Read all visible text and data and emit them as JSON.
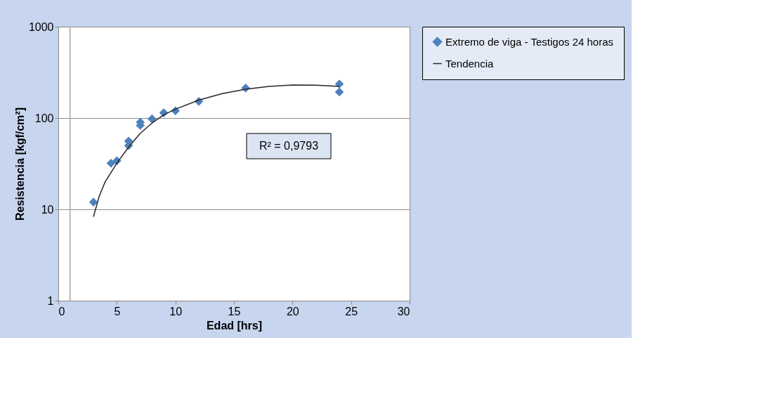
{
  "chart_data": {
    "type": "scatter",
    "xlabel": "Edad [hrs]",
    "ylabel": "Resistencia [kgf/cm²]",
    "annotations": [
      "R² = 0,9793"
    ],
    "xlim": [
      0,
      30
    ],
    "xticks": [
      0,
      5,
      10,
      15,
      20,
      25,
      30
    ],
    "ylim": [
      1,
      1000
    ],
    "yticks": [
      1,
      10,
      100,
      1000
    ],
    "log": "y",
    "grid": "y",
    "legend": "right",
    "ref_lines": [
      {
        "axis": "x",
        "value": 1,
        "label": null,
        "color": "#a6a6a6"
      }
    ],
    "series": [
      {
        "name": "Extremo de viga - Testigos 24 horas",
        "marker": "diamond",
        "color": "#4f81bd",
        "x": [
          3,
          4.5,
          5,
          6,
          6,
          7,
          7,
          8,
          9,
          10,
          12,
          16,
          24,
          24
        ],
        "values": [
          12,
          32,
          34,
          56,
          50,
          90,
          83,
          98,
          114,
          120,
          152,
          213,
          236,
          193
        ]
      },
      {
        "name": "Tendencia",
        "type": "line",
        "color": "#262626",
        "line_style": "solid",
        "x": [
          3,
          3.5,
          4,
          5,
          6,
          7,
          8,
          9,
          10,
          12,
          14,
          16,
          18,
          20,
          22,
          24
        ],
        "values": [
          8.3,
          14,
          20,
          32,
          48,
          68,
          88,
          108,
          125,
          157,
          185,
          207,
          222,
          230,
          229,
          222
        ]
      }
    ]
  }
}
